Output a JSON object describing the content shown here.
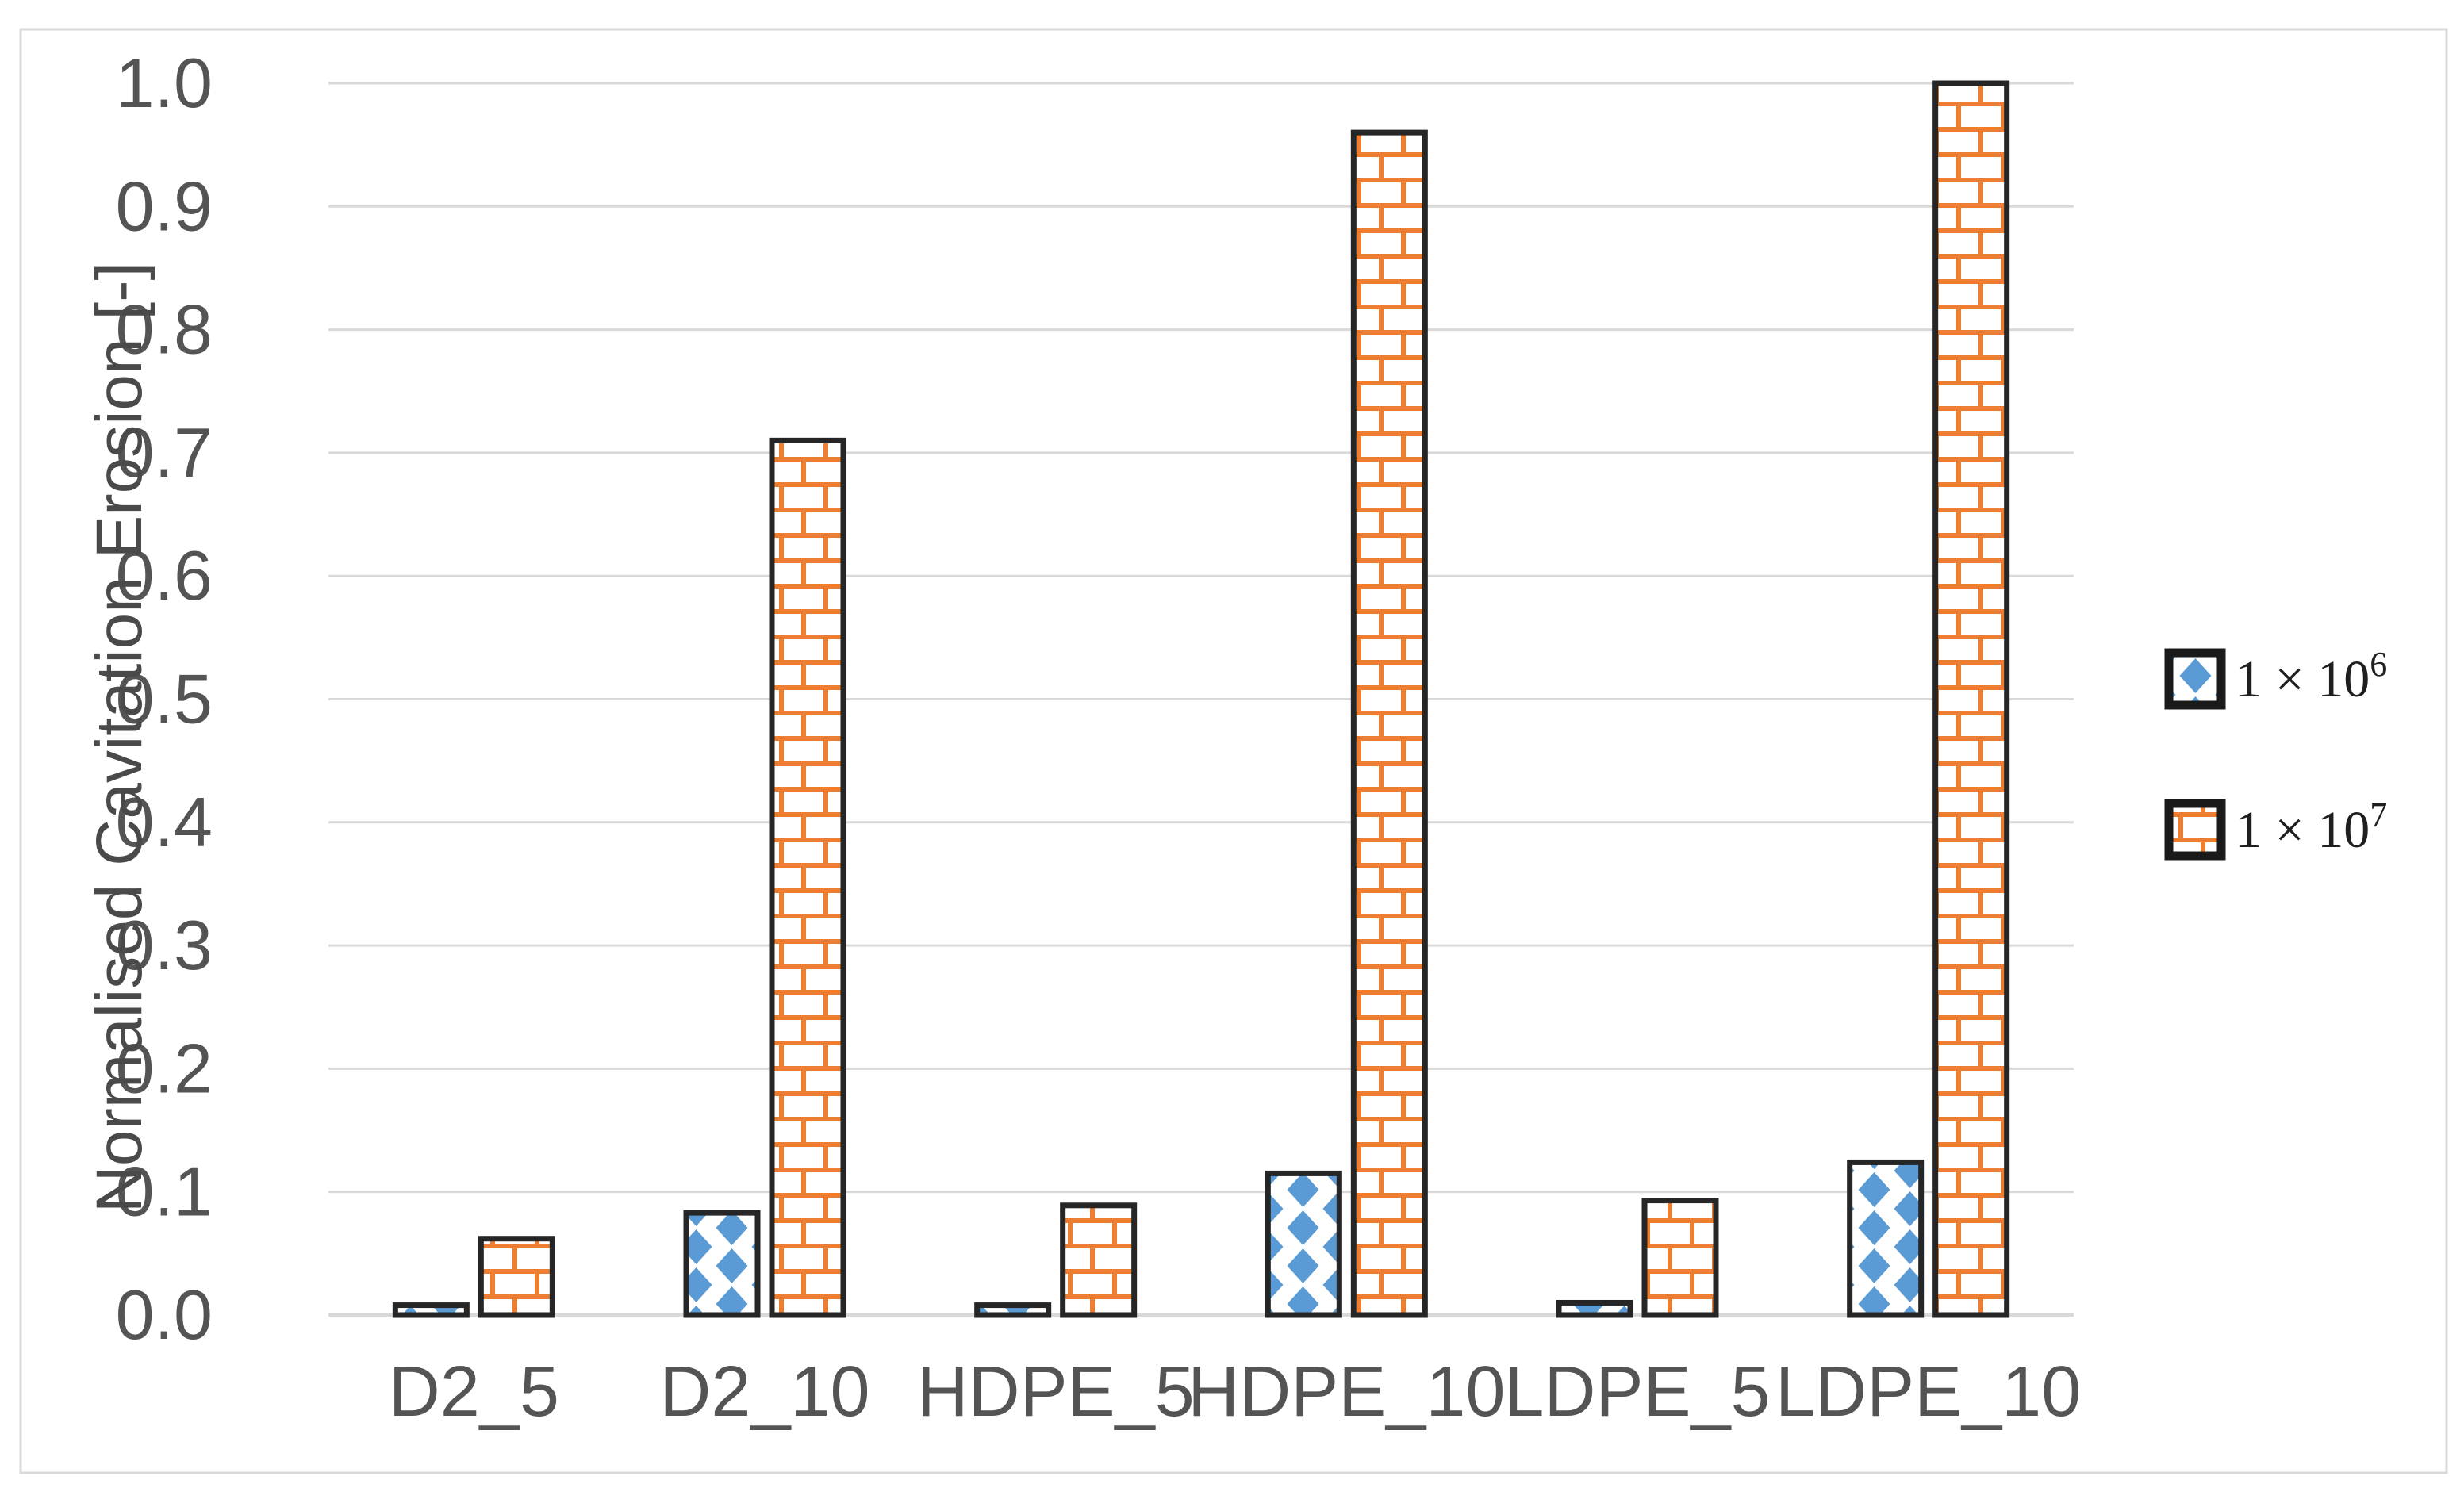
{
  "figure": {
    "background_color": "#ffffff",
    "border_color": "#d9d9d9",
    "gridline_color": "#d9d9d9",
    "tick_label_color": "#545454",
    "bar_outline_color": "#262626"
  },
  "chart_data": {
    "type": "bar",
    "title": "",
    "xlabel": "",
    "ylabel": "Normalised Cavitation Erosion [-]",
    "categories": [
      "D2_5",
      "D2_10",
      "HDPE_5",
      "HDPE_10",
      "LDPE_5",
      "LDPE_10"
    ],
    "series": [
      {
        "name": "1 × 10⁶",
        "label_base": "1 × 10",
        "label_exp": "6",
        "color": "#5B9BD5",
        "pattern": "diamond",
        "values": [
          0.008,
          0.083,
          0.008,
          0.115,
          0.01,
          0.124
        ]
      },
      {
        "name": "1 × 10⁷",
        "label_base": "1 × 10",
        "label_exp": "7",
        "color": "#ED7D31",
        "pattern": "brick",
        "values": [
          0.062,
          0.71,
          0.089,
          0.96,
          0.093,
          1.0
        ]
      }
    ],
    "ylim": [
      0.0,
      1.0
    ],
    "yticks": [
      0.0,
      0.1,
      0.2,
      0.3,
      0.4,
      0.5,
      0.6,
      0.7,
      0.8,
      0.9,
      1.0
    ],
    "ytick_labels": [
      "0.0",
      "0.1",
      "0.2",
      "0.3",
      "0.4",
      "0.5",
      "0.6",
      "0.7",
      "0.8",
      "0.9",
      "1.0"
    ],
    "grid": true,
    "legend_position": "right"
  }
}
